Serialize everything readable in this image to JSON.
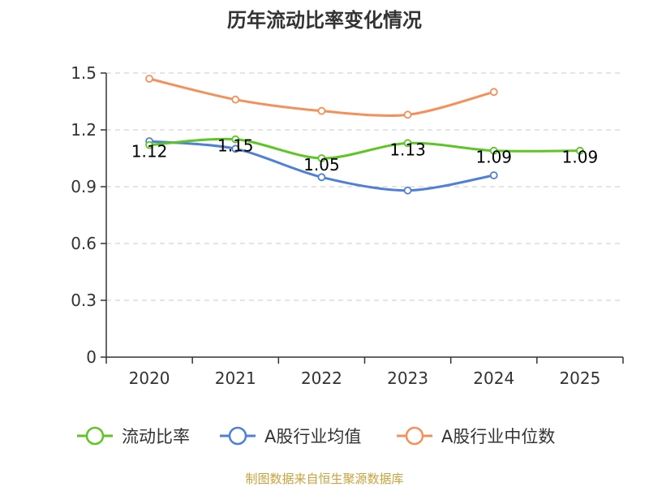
{
  "chart_data": {
    "type": "line",
    "title": "历年流动比率变化情况",
    "categories": [
      "2020",
      "2021",
      "2022",
      "2023",
      "2024",
      "2025"
    ],
    "ylim": [
      0,
      1.5
    ],
    "yticks": [
      "0",
      "0.3",
      "0.6",
      "0.9",
      "1.2",
      "1.5"
    ],
    "ytick_values": [
      0,
      0.3,
      0.6,
      0.9,
      1.2,
      1.5
    ],
    "grid": true,
    "legend_position": "bottom",
    "series": [
      {
        "name": "流动比率",
        "color": "#5dc626",
        "values": [
          1.12,
          1.15,
          1.05,
          1.13,
          1.09,
          1.09
        ],
        "labels": [
          "1.12",
          "1.15",
          "1.05",
          "1.13",
          "1.09",
          "1.09"
        ]
      },
      {
        "name": "A股行业均值",
        "color": "#4e80d8",
        "values": [
          1.14,
          1.1,
          0.95,
          0.88,
          0.96,
          null
        ]
      },
      {
        "name": "A股行业中位数",
        "color": "#f5905a",
        "values": [
          1.47,
          1.36,
          1.3,
          1.28,
          1.4,
          null
        ]
      }
    ]
  },
  "source": "制图数据来自恒生聚源数据库"
}
